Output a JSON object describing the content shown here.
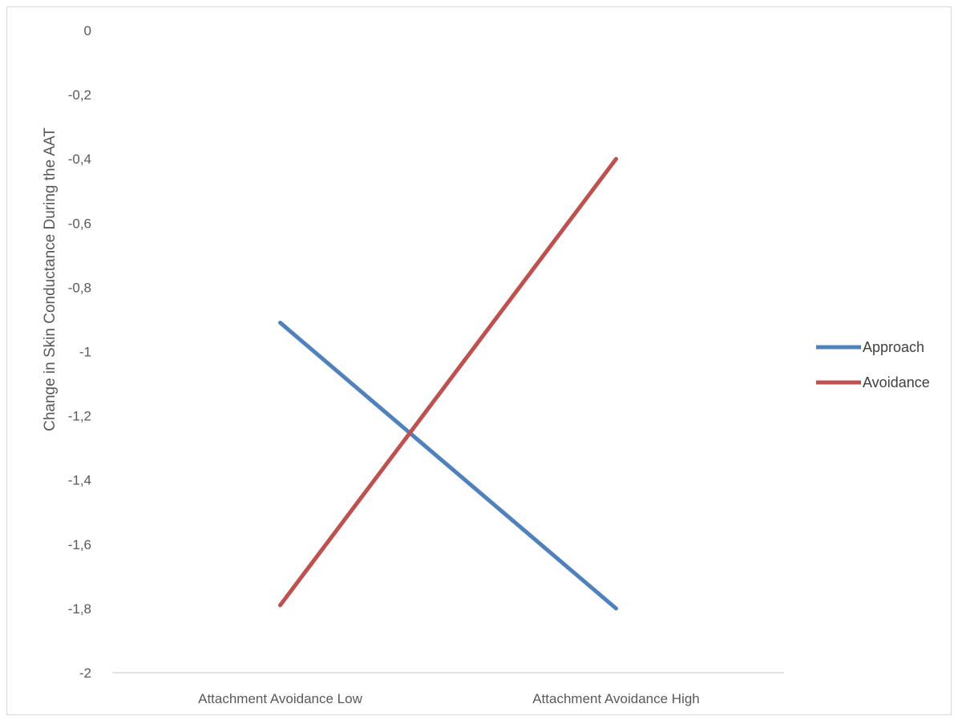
{
  "chart_data": {
    "type": "line",
    "title": "",
    "xlabel": "",
    "ylabel": "Change in Skin Conductance During the AAT",
    "categories": [
      "Attachment Avoidance Low",
      "Attachment Avoidance High"
    ],
    "ylim": [
      -2,
      0
    ],
    "yticks": [
      0,
      -0.2,
      -0.4,
      -0.6,
      -0.8,
      -1,
      -1.2,
      -1.4,
      -1.6,
      -1.8,
      -2
    ],
    "ytick_labels": [
      "0",
      "-0,2",
      "-0,4",
      "-0,6",
      "-0,8",
      "-1",
      "-1,2",
      "-1,4",
      "-1,6",
      "-1,8",
      "-2"
    ],
    "grid": false,
    "legend_position": "right",
    "series": [
      {
        "name": "Approach",
        "values": [
          -0.91,
          -1.8
        ],
        "color": "#4f81bd"
      },
      {
        "name": "Avoidance",
        "values": [
          -1.79,
          -0.4
        ],
        "color": "#c0504d"
      }
    ]
  }
}
